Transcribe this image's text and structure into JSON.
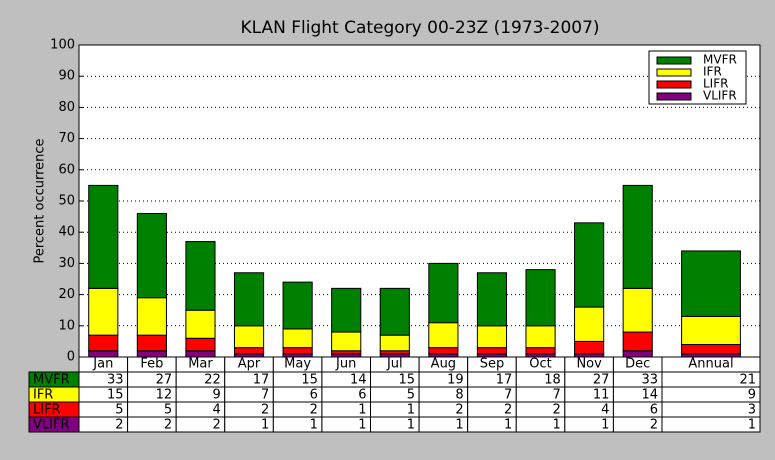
{
  "chart_data": {
    "type": "stacked_bar",
    "title": "KLAN Flight Category 00-23Z (1973-2007)",
    "y_label": "Percent occurrence",
    "categories": [
      "Jan",
      "Feb",
      "Mar",
      "Apr",
      "May",
      "Jun",
      "Jul",
      "Aug",
      "Sep",
      "Oct",
      "Nov",
      "Dec",
      "Annual"
    ],
    "series": [
      {
        "name": "MVFR",
        "color": "#008000",
        "values": [
          33,
          27,
          22,
          17,
          15,
          14,
          15,
          19,
          17,
          18,
          27,
          33,
          21
        ]
      },
      {
        "name": "IFR",
        "color": "#ffff00",
        "values": [
          15,
          12,
          9,
          7,
          6,
          6,
          5,
          8,
          7,
          7,
          11,
          14,
          9
        ]
      },
      {
        "name": "LIFR",
        "color": "#ff0000",
        "values": [
          5,
          5,
          4,
          2,
          2,
          1,
          1,
          2,
          2,
          2,
          4,
          6,
          3
        ]
      },
      {
        "name": "VLIFR",
        "color": "#800080",
        "values": [
          2,
          2,
          2,
          1,
          1,
          1,
          1,
          1,
          1,
          1,
          1,
          2,
          1
        ]
      }
    ],
    "ylim": [
      0,
      100
    ],
    "yticks": [
      0,
      10,
      20,
      30,
      40,
      50,
      60,
      70,
      80,
      90,
      100
    ],
    "grid": true,
    "legend": "upper right"
  }
}
